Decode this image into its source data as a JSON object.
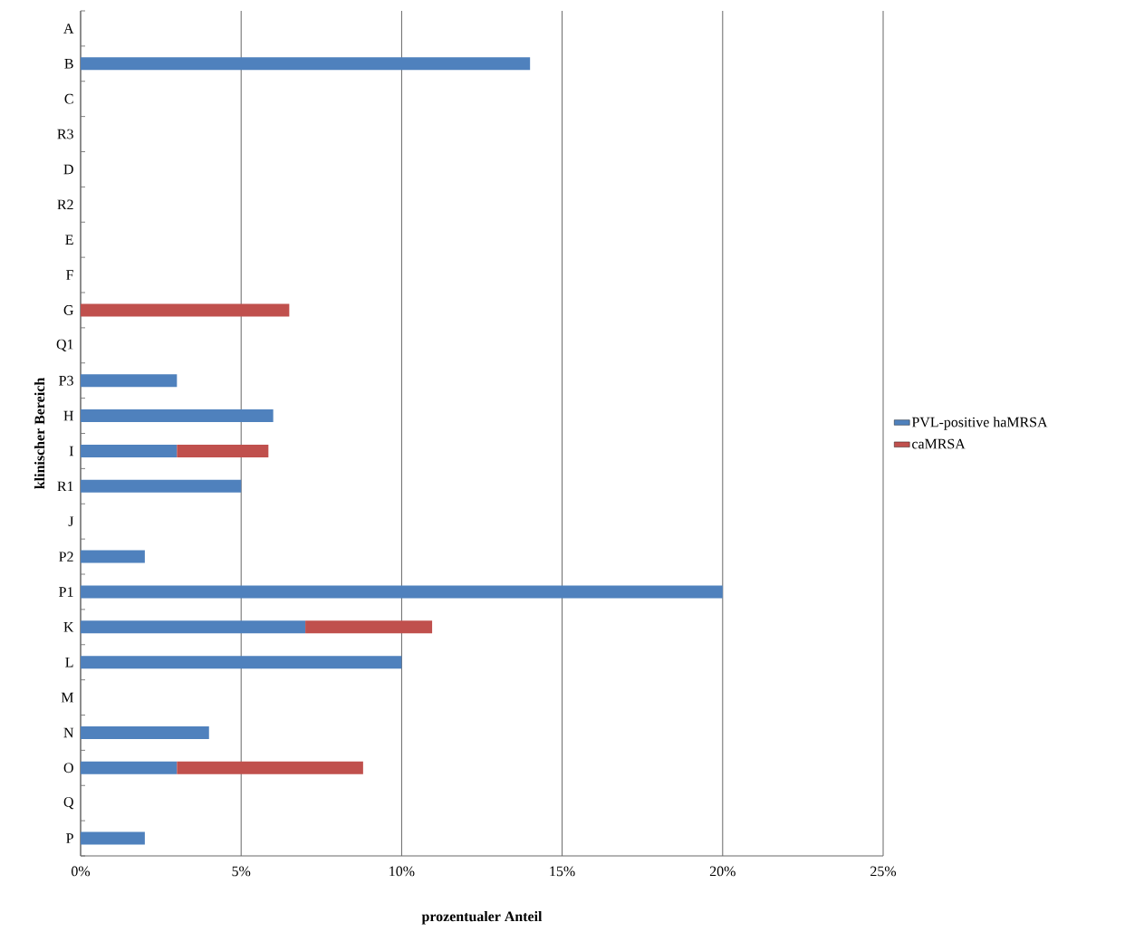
{
  "chart_data": {
    "type": "bar",
    "orientation": "horizontal",
    "stacked": true,
    "xlabel": "prozentualer Anteil",
    "ylabel": "klinischer Bereich",
    "categories": [
      "A",
      "B",
      "C",
      "R3",
      "D",
      "R2",
      "E",
      "F",
      "G",
      "Q1",
      "P3",
      "H",
      "I",
      "R1",
      "J",
      "P2",
      "P1",
      "K",
      "L",
      "M",
      "N",
      "O",
      "Q",
      "P"
    ],
    "series": [
      {
        "name": "PVL-positive haMRSA",
        "color": "#4f81bd",
        "values": [
          null,
          14,
          null,
          null,
          null,
          null,
          null,
          null,
          null,
          null,
          3,
          6,
          3,
          5,
          null,
          2,
          20,
          7,
          10,
          null,
          4,
          3,
          null,
          2
        ]
      },
      {
        "name": "caMRSA",
        "color": "#c0504d",
        "values": [
          null,
          null,
          null,
          null,
          null,
          null,
          null,
          null,
          6.5,
          null,
          null,
          null,
          2.85,
          null,
          null,
          null,
          null,
          3.95,
          null,
          null,
          null,
          5.8,
          null,
          null
        ]
      }
    ],
    "xlim": [
      0,
      25
    ],
    "xticks": [
      {
        "value": 0,
        "label": "0%"
      },
      {
        "value": 5,
        "label": "5%"
      },
      {
        "value": 10,
        "label": "10%"
      },
      {
        "value": 15,
        "label": "15%"
      },
      {
        "value": 20,
        "label": "20%"
      },
      {
        "value": 25,
        "label": "25%"
      }
    ],
    "grid": "x",
    "legend": "right"
  }
}
